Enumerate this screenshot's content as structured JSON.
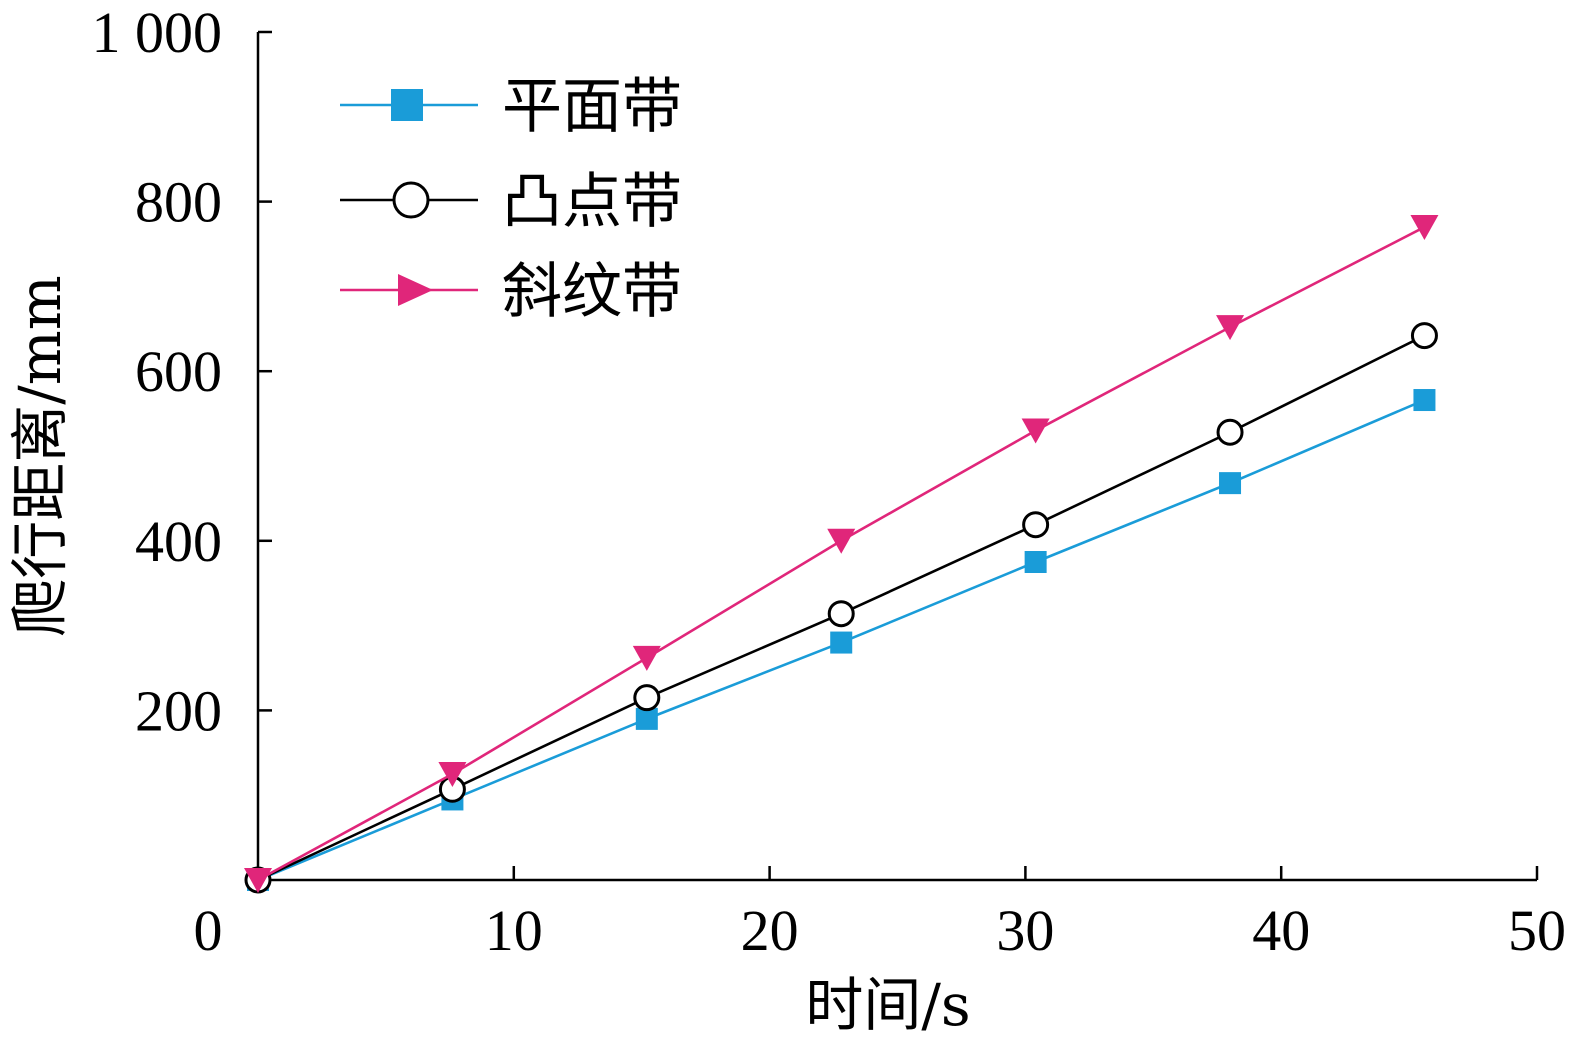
{
  "chart_data": {
    "type": "line",
    "title": "",
    "xlabel": "时间/s",
    "ylabel": "爬行距离/mm",
    "xlim": [
      0,
      50
    ],
    "ylim": [
      0,
      1000
    ],
    "xticks": [
      0,
      10,
      20,
      30,
      40,
      50
    ],
    "xtick_labels": [
      "0",
      "10",
      "20",
      "30",
      "40",
      "50"
    ],
    "yticks": [
      200,
      400,
      600,
      800,
      1000
    ],
    "ytick_labels": [
      "200",
      "400",
      "600",
      "800",
      "1 000"
    ],
    "grid": false,
    "legend_position": "top-left",
    "series": [
      {
        "name": "平面带",
        "color": "#1a9cd8",
        "marker": "square",
        "x": [
          0,
          7.6,
          15.2,
          22.8,
          30.4,
          38.0,
          45.6
        ],
        "y": [
          0,
          95,
          190,
          280,
          375,
          468,
          566
        ]
      },
      {
        "name": "凸点带",
        "color": "#000000",
        "marker": "circle-open",
        "x": [
          0,
          7.6,
          15.2,
          22.8,
          30.4,
          38.0,
          45.6
        ],
        "y": [
          0,
          107,
          215,
          314,
          419,
          528,
          642
        ]
      },
      {
        "name": "斜纹带",
        "color": "#e0267a",
        "marker": "triangle-down",
        "x": [
          0,
          7.6,
          15.2,
          22.8,
          30.4,
          38.0,
          45.6
        ],
        "y": [
          0,
          125,
          262,
          400,
          530,
          652,
          770
        ]
      }
    ]
  }
}
